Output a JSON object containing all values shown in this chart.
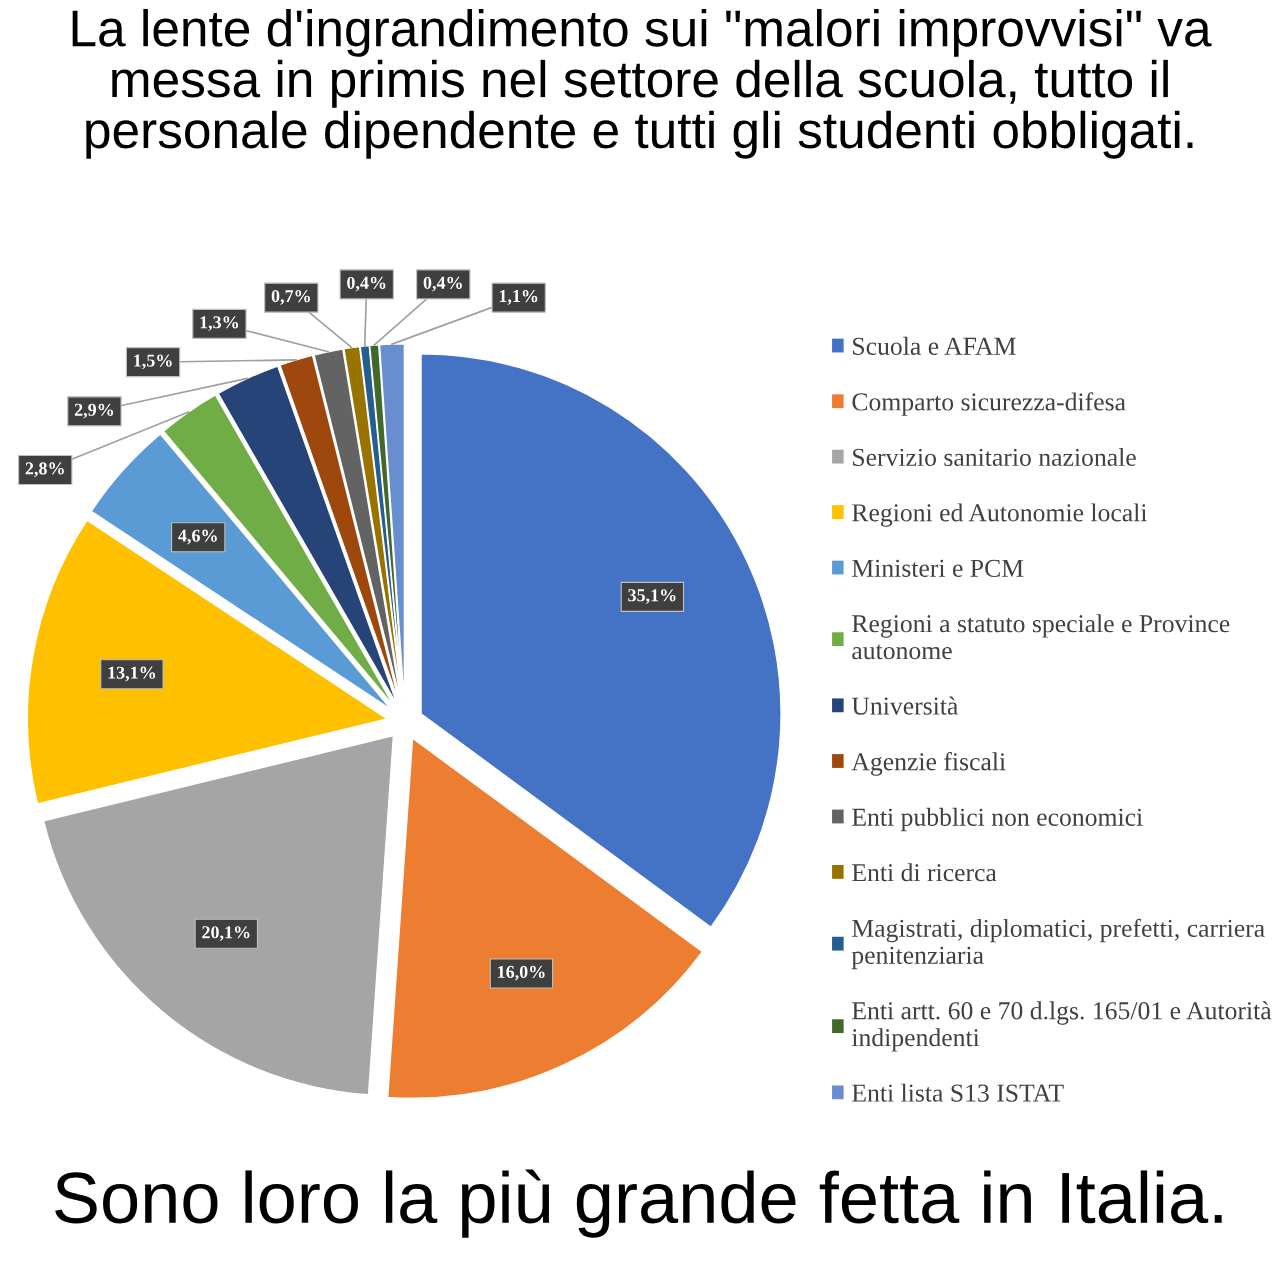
{
  "chart_data": {
    "type": "pie",
    "title": "La lente d'ingrandimento sui \"malori improvvisi\" va messa in primis nel settore della scuola, tutto il personale dipendente e tutti gli studenti obbligati.",
    "categories": [
      "Scuola e AFAM",
      "Comparto sicurezza-difesa",
      "Servizio sanitario nazionale",
      "Regioni ed Autonomie locali",
      "Ministeri e PCM",
      "Regioni a statuto speciale e Province autonome",
      "Università",
      "Agenzie fiscali",
      "Enti pubblici non economici",
      "Enti di ricerca",
      "Magistrati, diplomatici, prefetti, carriera penitenziaria",
      "Enti artt. 60 e 70 d.lgs. 165/01 e Autorità indipendenti",
      "Enti lista S13 ISTAT"
    ],
    "values": [
      35.1,
      16.0,
      20.1,
      13.1,
      4.6,
      2.8,
      2.9,
      1.5,
      1.3,
      0.7,
      0.4,
      0.4,
      1.1
    ],
    "colors": [
      "#4472c4",
      "#ed7d31",
      "#a5a5a5",
      "#ffc000",
      "#5b9bd5",
      "#70ad47",
      "#264478",
      "#9e480e",
      "#636363",
      "#997300",
      "#255e91",
      "#43682b",
      "#698ed0"
    ],
    "value_labels": [
      "35,1%",
      "16,0%",
      "20,1%",
      "13,1%",
      "4,6%",
      "2,8%",
      "2,9%",
      "1,5%",
      "1,3%",
      "0,7%",
      "0,4%",
      "0,4%",
      "1,1%"
    ],
    "legend": "right",
    "annotations": [
      "Sono loro la più grande fetta in Italia."
    ]
  }
}
